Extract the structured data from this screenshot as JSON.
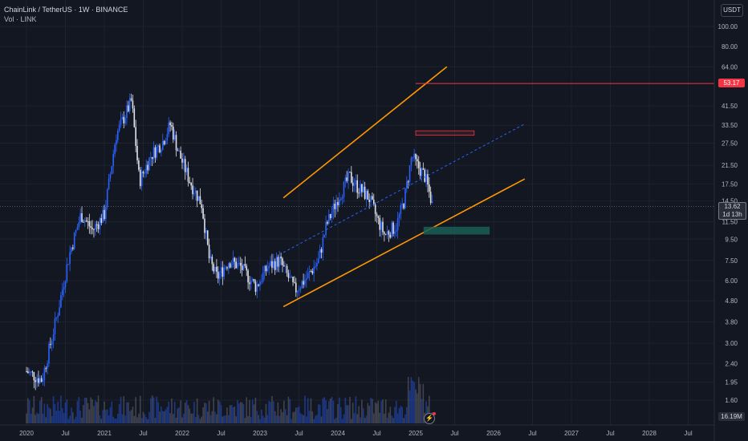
{
  "header": {
    "title": "ChainLink / TetherUS · 1W · BINANCE",
    "volume_label": "Vol · LINK"
  },
  "currency_label": "USDT",
  "tags": {
    "target_price": "53.17",
    "current_price": "13.62",
    "countdown": "1d 13h",
    "volume": "16.19M"
  },
  "colors": {
    "background": "#131722",
    "up_candle": "#2962ff",
    "down_candle": "#e0e3eb",
    "channel": "#ff9800",
    "midline": "#2962ff",
    "target_line": "#f23645",
    "support_zone": "#1a5e55"
  },
  "chart_data": {
    "type": "candlestick",
    "symbol": "LINK/USDT",
    "interval": "1W",
    "y_scale": "log",
    "y_ticks": [
      "100.00",
      "80.00",
      "64.00",
      "53.17",
      "41.50",
      "33.50",
      "27.50",
      "21.50",
      "17.50",
      "14.50",
      "13.62",
      "11.50",
      "9.50",
      "7.50",
      "6.00",
      "4.80",
      "3.80",
      "3.00",
      "2.40",
      "1.95",
      "1.60"
    ],
    "x_ticks": [
      "2020",
      "Jul",
      "2021",
      "Jul",
      "2022",
      "Jul",
      "2023",
      "Jul",
      "2024",
      "Jul",
      "2025",
      "Jul",
      "2026",
      "Jul",
      "2027",
      "Jul",
      "2028",
      "Jul"
    ],
    "price_path": [
      [
        2020.0,
        2.2
      ],
      [
        2020.2,
        2.0
      ],
      [
        2020.4,
        4.2
      ],
      [
        2020.55,
        8.0
      ],
      [
        2020.7,
        12.5
      ],
      [
        2020.85,
        10.5
      ],
      [
        2021.0,
        12.5
      ],
      [
        2021.15,
        30.0
      ],
      [
        2021.35,
        44.0
      ],
      [
        2021.45,
        18.0
      ],
      [
        2021.6,
        24.0
      ],
      [
        2021.75,
        28.0
      ],
      [
        2021.85,
        34.0
      ],
      [
        2021.95,
        25.0
      ],
      [
        2022.1,
        18.0
      ],
      [
        2022.25,
        14.0
      ],
      [
        2022.35,
        7.5
      ],
      [
        2022.45,
        6.2
      ],
      [
        2022.6,
        7.5
      ],
      [
        2022.75,
        7.0
      ],
      [
        2022.95,
        5.6
      ],
      [
        2023.1,
        7.0
      ],
      [
        2023.25,
        7.5
      ],
      [
        2023.45,
        5.4
      ],
      [
        2023.6,
        6.2
      ],
      [
        2023.75,
        7.5
      ],
      [
        2023.85,
        11.0
      ],
      [
        2024.0,
        15.0
      ],
      [
        2024.15,
        19.0
      ],
      [
        2024.25,
        17.0
      ],
      [
        2024.4,
        15.0
      ],
      [
        2024.5,
        12.0
      ],
      [
        2024.6,
        10.0
      ],
      [
        2024.75,
        11.0
      ],
      [
        2024.85,
        14.5
      ],
      [
        2024.95,
        24.0
      ],
      [
        2025.0,
        22.0
      ],
      [
        2025.12,
        19.0
      ],
      [
        2025.22,
        13.62
      ]
    ],
    "annotations": {
      "ascending_channel": {
        "upper": {
          "from": [
            2023.3,
            15.0
          ],
          "to": [
            2025.4,
            64.0
          ]
        },
        "lower": {
          "from": [
            2023.3,
            4.5
          ],
          "to": [
            2026.4,
            18.5
          ]
        },
        "midline": {
          "from": [
            2023.3,
            8.2
          ],
          "to": [
            2026.4,
            34.0
          ]
        }
      },
      "target_line": {
        "price": 53.17,
        "from": 2025.0
      },
      "resistance_box": {
        "x": [
          2025.0,
          2025.75
        ],
        "y": [
          30.0,
          31.5
        ]
      },
      "support_box": {
        "x": [
          2025.1,
          2025.95
        ],
        "y": [
          10.0,
          10.9
        ]
      }
    },
    "last_volume": "16.19M"
  }
}
